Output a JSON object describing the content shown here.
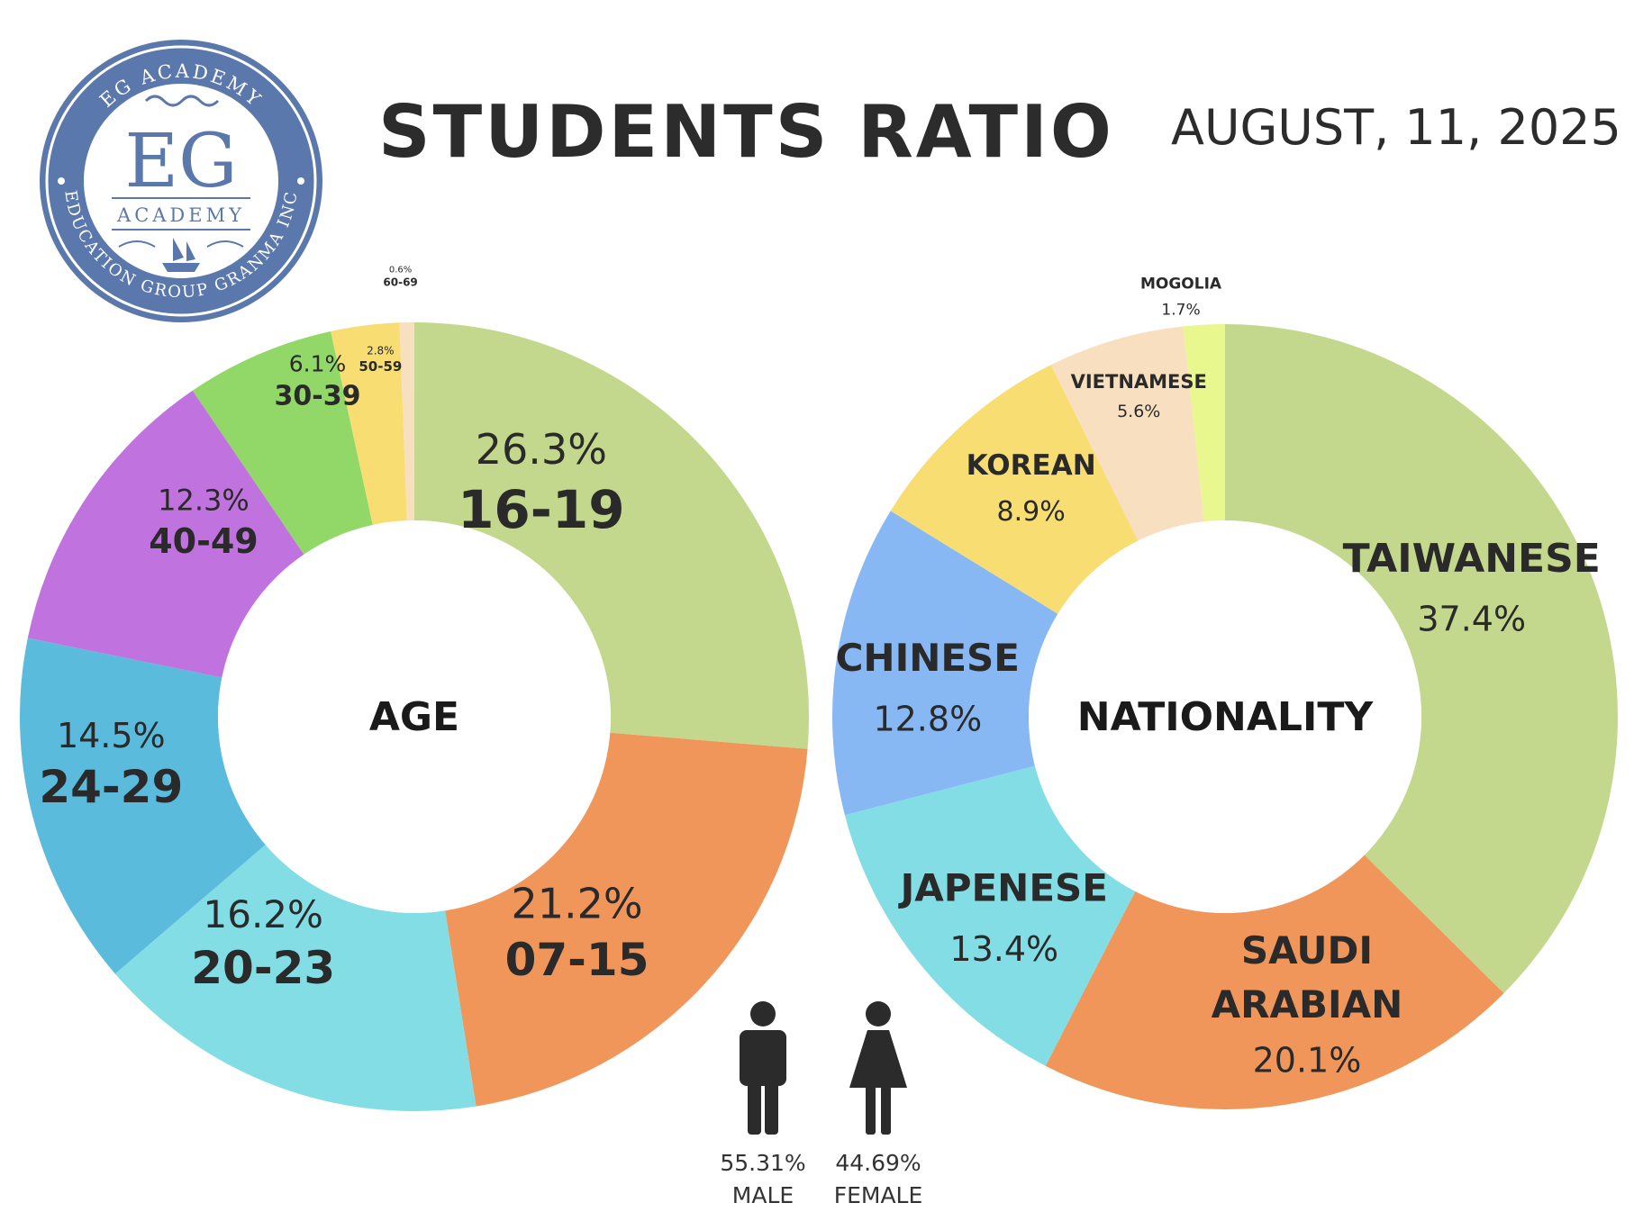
{
  "header": {
    "title": "STUDENTS RATIO",
    "date": "AUGUST, 11, 2025"
  },
  "logo": {
    "top_arc_text": "EG ACADEMY",
    "bottom_arc_text": "EDUCATION GROUP GRANMA INC",
    "monogram": "EG",
    "subtitle": "ACADEMY",
    "color": "#5b78ad"
  },
  "chart_data": [
    {
      "type": "donut",
      "center_label": "AGE",
      "categories": [
        "16-19",
        "07-15",
        "20-23",
        "24-29",
        "40-49",
        "30-39",
        "50-59",
        "60-69"
      ],
      "values": [
        26.3,
        21.2,
        16.2,
        14.5,
        12.3,
        6.1,
        2.8,
        0.6
      ],
      "value_labels": [
        "26.3%",
        "21.2%",
        "16.2%",
        "14.5%",
        "12.3%",
        "6.1%",
        "2.8%",
        "0.6%"
      ],
      "colors": [
        "#c3d88c",
        "#f0965b",
        "#83dde5",
        "#5bbbdc",
        "#c073de",
        "#91d868",
        "#f8dd73",
        "#f8dfc0"
      ],
      "start_angle_deg": 0,
      "direction": "clockwise"
    },
    {
      "type": "donut",
      "center_label": "NATIONALITY",
      "categories": [
        "TAIWANESE",
        "SAUDI ARABIAN",
        "JAPENESE",
        "CHINESE",
        "KOREAN",
        "VIETNAMESE",
        "MOGOLIA"
      ],
      "values": [
        37.4,
        20.1,
        13.4,
        12.8,
        8.9,
        5.6,
        1.7
      ],
      "value_labels": [
        "37.4%",
        "20.1%",
        "13.4%",
        "12.8%",
        "8.9%",
        "5.6%",
        "1.7%"
      ],
      "colors": [
        "#c3d88c",
        "#f0965b",
        "#83dde5",
        "#88b8f4",
        "#f8dd73",
        "#f8dfc0",
        "#e9f88e"
      ],
      "start_angle_deg": 0,
      "direction": "clockwise"
    }
  ],
  "gender": {
    "male": {
      "value": "55.31%",
      "label": "MALE",
      "icon": "male-icon"
    },
    "female": {
      "value": "44.69%",
      "label": "FEMALE",
      "icon": "female-icon"
    }
  }
}
